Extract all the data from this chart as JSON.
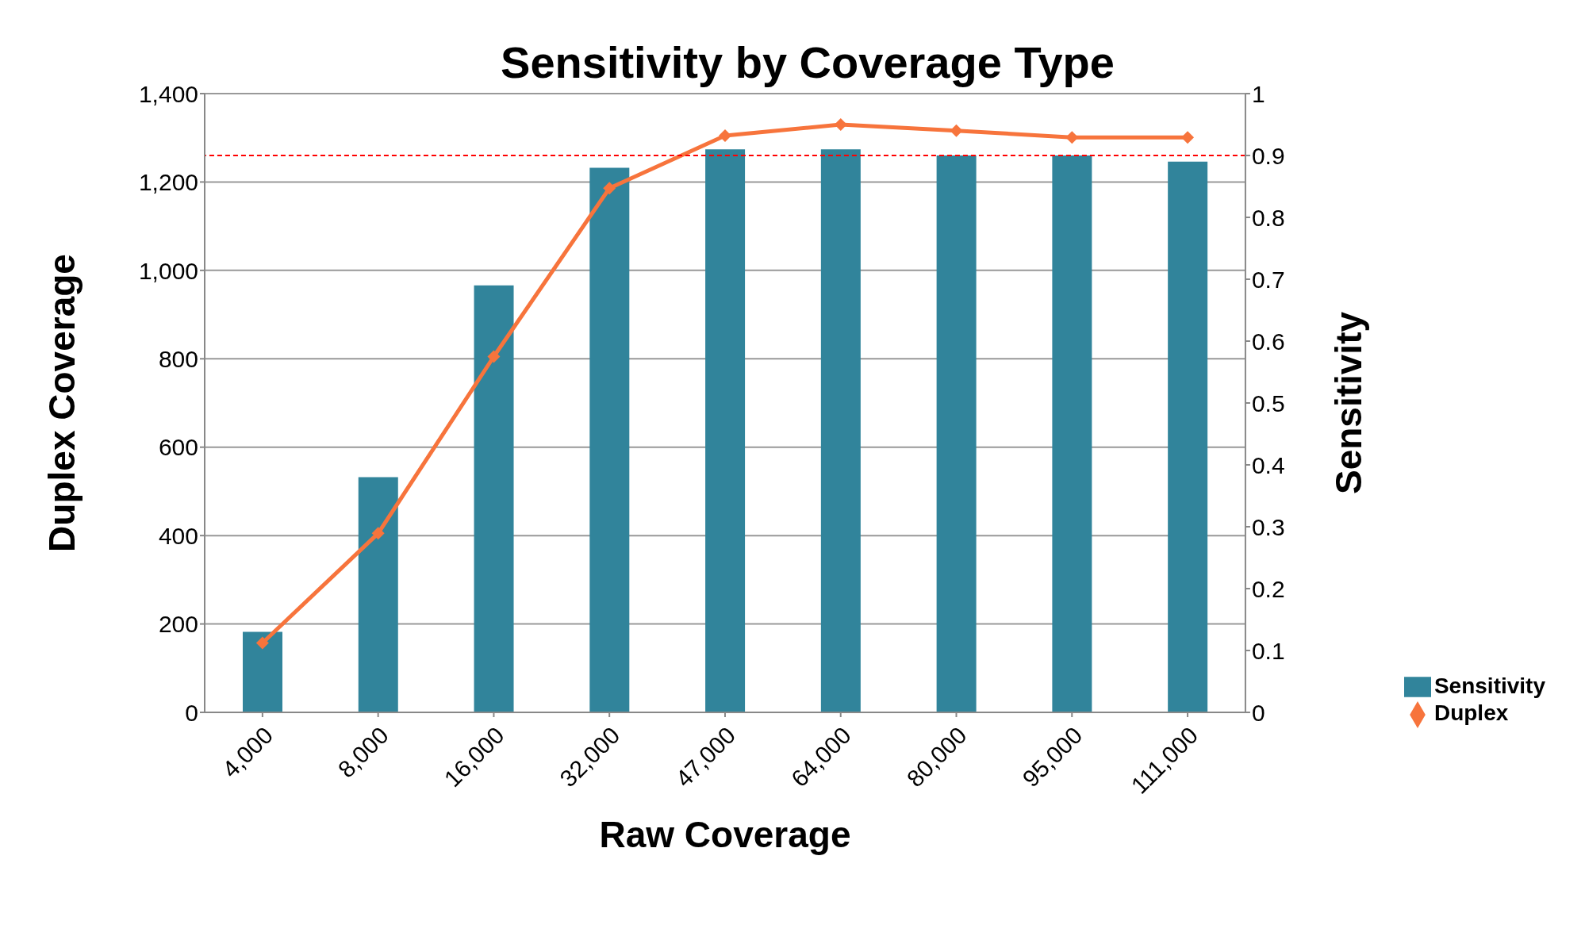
{
  "chart_data": {
    "type": "bar",
    "title": "Sensitivity by Coverage Type",
    "xlabel": "Raw Coverage",
    "ylabel": "Duplex Coverage",
    "y2label": "Sensitivity",
    "categories": [
      "4,000",
      "8,000",
      "16,000",
      "32,000",
      "47,000",
      "64,000",
      "80,000",
      "95,000",
      "111,000"
    ],
    "series": [
      {
        "name": "Sensitivity",
        "axis": "y2",
        "color": "#31849b",
        "values": [
          0.13,
          0.38,
          0.69,
          0.88,
          0.91,
          0.91,
          0.9,
          0.9,
          0.89
        ]
      },
      {
        "name": "Duplex",
        "type": "line",
        "axis": "y",
        "color": "#f7743c",
        "marker": "diamond",
        "line_style": "solid",
        "values": [
          157,
          405,
          805,
          1186,
          1305,
          1330,
          1316,
          1301,
          1301
        ]
      }
    ],
    "ylim": [
      0,
      1400
    ],
    "yticks": [
      {
        "value": 0,
        "label": "0"
      },
      {
        "value": 200,
        "label": "200"
      },
      {
        "value": 400,
        "label": "400"
      },
      {
        "value": 600,
        "label": "600"
      },
      {
        "value": 800,
        "label": "800"
      },
      {
        "value": 1000,
        "label": "1,000"
      },
      {
        "value": 1200,
        "label": "1,200"
      },
      {
        "value": 1400,
        "label": "1,400"
      }
    ],
    "y2lim": [
      0,
      1
    ],
    "y2ticks": [
      0,
      0.1,
      0.2,
      0.3,
      0.4,
      0.5,
      0.6,
      0.7,
      0.8,
      0.9,
      1
    ],
    "ref_lines": [
      {
        "axis": "y2",
        "value": 0.9,
        "color": "#ff0000",
        "line_style": "dashed"
      }
    ],
    "grid": "y",
    "legend": "bottom right"
  }
}
